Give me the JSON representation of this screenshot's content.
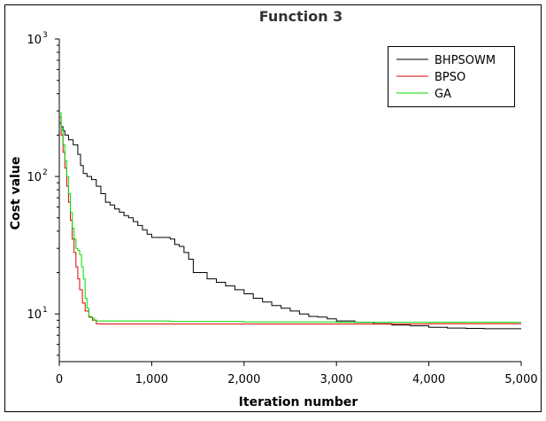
{
  "chart_data": {
    "type": "line",
    "title": "Function 3",
    "xlabel": "Iteration number",
    "ylabel": "Cost value",
    "xlim": [
      0,
      5000
    ],
    "ylim": [
      4.5,
      1000
    ],
    "yscale": "log",
    "grid": false,
    "legend_position": "top-right",
    "x_ticks": [
      {
        "value": 0,
        "label": "0"
      },
      {
        "value": 1000,
        "label": "1,000"
      },
      {
        "value": 2000,
        "label": "2,000"
      },
      {
        "value": 3000,
        "label": "3,000"
      },
      {
        "value": 4000,
        "label": "4,000"
      },
      {
        "value": 5000,
        "label": "5,000"
      }
    ],
    "y_ticks": [
      {
        "value": 10,
        "base": "10",
        "exp": "1"
      },
      {
        "value": 100,
        "base": "10",
        "exp": "2"
      },
      {
        "value": 1000,
        "base": "10",
        "exp": "3"
      }
    ],
    "series": [
      {
        "name": "BHPSOWM",
        "color": "#000000",
        "points": [
          [
            0,
            245
          ],
          [
            20,
            230
          ],
          [
            40,
            215
          ],
          [
            60,
            200
          ],
          [
            100,
            185
          ],
          [
            150,
            170
          ],
          [
            200,
            145
          ],
          [
            230,
            120
          ],
          [
            260,
            105
          ],
          [
            300,
            100
          ],
          [
            350,
            95
          ],
          [
            400,
            85
          ],
          [
            450,
            75
          ],
          [
            500,
            65
          ],
          [
            550,
            62
          ],
          [
            600,
            58
          ],
          [
            650,
            55
          ],
          [
            700,
            52
          ],
          [
            750,
            50
          ],
          [
            800,
            47
          ],
          [
            850,
            44
          ],
          [
            900,
            41
          ],
          [
            950,
            38
          ],
          [
            1000,
            36
          ],
          [
            1100,
            36
          ],
          [
            1200,
            35
          ],
          [
            1250,
            32
          ],
          [
            1300,
            31
          ],
          [
            1350,
            28
          ],
          [
            1400,
            25
          ],
          [
            1450,
            20
          ],
          [
            1500,
            20
          ],
          [
            1600,
            18
          ],
          [
            1700,
            17
          ],
          [
            1800,
            16
          ],
          [
            1900,
            15
          ],
          [
            2000,
            14
          ],
          [
            2100,
            13
          ],
          [
            2200,
            12.2
          ],
          [
            2300,
            11.5
          ],
          [
            2400,
            11
          ],
          [
            2500,
            10.5
          ],
          [
            2600,
            10
          ],
          [
            2700,
            9.6
          ],
          [
            2800,
            9.5
          ],
          [
            2900,
            9.2
          ],
          [
            3000,
            8.9
          ],
          [
            3200,
            8.7
          ],
          [
            3400,
            8.5
          ],
          [
            3600,
            8.3
          ],
          [
            3800,
            8.2
          ],
          [
            4000,
            8.0
          ],
          [
            4200,
            7.9
          ],
          [
            4400,
            7.85
          ],
          [
            4600,
            7.8
          ],
          [
            4800,
            7.8
          ],
          [
            5000,
            7.8
          ]
        ]
      },
      {
        "name": "BPSO",
        "color": "#e00000",
        "points": [
          [
            0,
            270
          ],
          [
            20,
            200
          ],
          [
            40,
            150
          ],
          [
            60,
            115
          ],
          [
            80,
            85
          ],
          [
            100,
            65
          ],
          [
            120,
            48
          ],
          [
            140,
            35
          ],
          [
            160,
            28
          ],
          [
            180,
            22
          ],
          [
            200,
            18
          ],
          [
            220,
            15
          ],
          [
            250,
            12
          ],
          [
            280,
            10.5
          ],
          [
            320,
            9.5
          ],
          [
            360,
            9
          ],
          [
            400,
            8.5
          ],
          [
            450,
            8.45
          ],
          [
            1000,
            8.45
          ],
          [
            2000,
            8.45
          ],
          [
            3000,
            8.45
          ],
          [
            4000,
            8.5
          ],
          [
            5000,
            8.5
          ]
        ]
      },
      {
        "name": "GA",
        "color": "#00dd00",
        "points": [
          [
            0,
            290
          ],
          [
            20,
            220
          ],
          [
            40,
            170
          ],
          [
            60,
            130
          ],
          [
            80,
            100
          ],
          [
            100,
            75
          ],
          [
            120,
            55
          ],
          [
            140,
            42
          ],
          [
            160,
            35
          ],
          [
            180,
            30
          ],
          [
            200,
            29
          ],
          [
            220,
            27
          ],
          [
            240,
            22
          ],
          [
            260,
            18
          ],
          [
            280,
            13
          ],
          [
            300,
            11
          ],
          [
            320,
            9.6
          ],
          [
            340,
            9.4
          ],
          [
            360,
            9.3
          ],
          [
            380,
            9.0
          ],
          [
            400,
            8.9
          ],
          [
            600,
            8.9
          ],
          [
            1000,
            8.9
          ],
          [
            1200,
            8.8
          ],
          [
            2000,
            8.75
          ],
          [
            3000,
            8.7
          ],
          [
            4000,
            8.7
          ],
          [
            5000,
            8.7
          ]
        ]
      }
    ]
  }
}
